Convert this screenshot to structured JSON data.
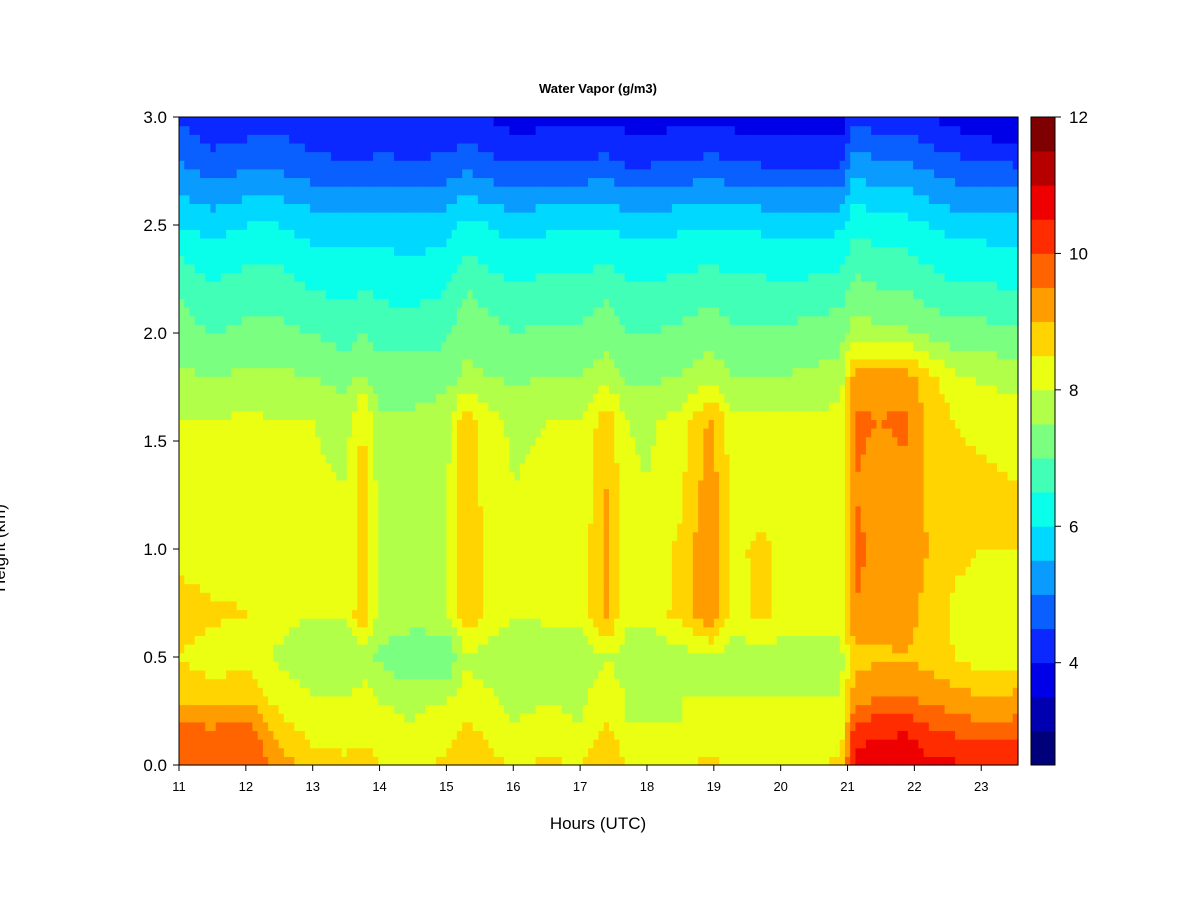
{
  "chart_data": {
    "type": "heatmap",
    "title": "Water Vapor (g/m3)",
    "xlabel": "Hours (UTC)",
    "ylabel": "Height (km)",
    "xlim": [
      11,
      23.55
    ],
    "ylim": [
      0,
      3
    ],
    "x_ticks": [
      "11",
      "12",
      "13",
      "14",
      "15",
      "16",
      "17",
      "18",
      "19",
      "20",
      "21",
      "22",
      "23"
    ],
    "y_ticks": [
      "0.0",
      "0.5",
      "1.0",
      "1.5",
      "2.0",
      "2.5",
      "3.0"
    ],
    "colorbar": {
      "min": 2.5,
      "max": 12,
      "ticks": [
        "4",
        "6",
        "8",
        "10",
        "12"
      ],
      "levels": [
        "#00007a",
        "#0000b0",
        "#0000e8",
        "#0a28ff",
        "#0a60ff",
        "#0a9bff",
        "#00d8ff",
        "#0affea",
        "#42ffb8",
        "#7aff80",
        "#b2ff4a",
        "#eaff12",
        "#ffd400",
        "#ff9c00",
        "#ff6400",
        "#ff2c00",
        "#ee0000",
        "#b60000",
        "#7e0000"
      ]
    },
    "height_km": [
      0.0,
      0.1,
      0.2,
      0.3,
      0.5,
      0.7,
      1.0,
      1.3,
      1.6,
      1.8,
      2.0,
      2.2,
      2.5,
      2.8,
      3.0
    ],
    "time_hours": [
      11.0,
      11.5,
      12.0,
      12.5,
      13.0,
      13.5,
      13.75,
      14.0,
      14.5,
      15.0,
      15.3,
      15.6,
      16.0,
      16.5,
      17.0,
      17.4,
      17.7,
      18.0,
      18.5,
      18.95,
      19.3,
      19.7,
      20.0,
      20.5,
      20.9,
      21.1,
      21.5,
      21.85,
      22.2,
      22.6,
      23.0,
      23.55
    ],
    "water_vapor_profiles": [
      [
        10.0,
        10.0,
        9.5,
        9.0,
        8.5,
        8.8,
        8.3,
        8.3,
        8.0,
        7.6,
        7.2,
        7.0,
        6.0,
        5.0,
        4.4
      ],
      [
        9.8,
        9.8,
        9.4,
        8.8,
        8.2,
        8.6,
        8.2,
        8.2,
        8.0,
        7.5,
        7.0,
        6.6,
        5.8,
        4.6,
        4.2
      ],
      [
        10.0,
        10.0,
        9.6,
        9.0,
        8.3,
        8.5,
        8.4,
        8.3,
        8.1,
        7.6,
        7.1,
        6.8,
        6.0,
        4.8,
        4.2
      ],
      [
        9.2,
        9.0,
        8.6,
        8.3,
        7.9,
        8.2,
        8.1,
        8.1,
        8.0,
        7.6,
        7.1,
        6.8,
        6.0,
        4.8,
        4.3
      ],
      [
        8.8,
        8.5,
        8.3,
        8.1,
        7.6,
        8.0,
        8.0,
        8.1,
        8.0,
        7.5,
        7.0,
        6.5,
        5.8,
        4.6,
        4.1
      ],
      [
        8.6,
        8.4,
        8.2,
        8.0,
        7.5,
        8.0,
        8.0,
        8.0,
        7.8,
        7.3,
        6.8,
        6.4,
        5.8,
        4.5,
        4.0
      ],
      [
        8.8,
        8.5,
        8.3,
        8.2,
        7.8,
        9.0,
        8.8,
        8.7,
        8.6,
        7.6,
        7.0,
        6.5,
        5.8,
        4.5,
        4.0
      ],
      [
        8.5,
        8.3,
        8.1,
        8.0,
        7.4,
        7.8,
        7.8,
        7.8,
        7.6,
        7.2,
        6.8,
        6.4,
        5.8,
        4.6,
        4.0
      ],
      [
        8.4,
        8.2,
        8.0,
        7.9,
        7.0,
        7.8,
        7.8,
        7.8,
        7.6,
        7.2,
        6.8,
        6.3,
        5.7,
        4.5,
        4.0
      ],
      [
        8.6,
        8.4,
        8.2,
        8.0,
        7.0,
        7.9,
        7.9,
        7.9,
        7.8,
        7.3,
        6.9,
        6.5,
        5.8,
        4.6,
        4.0
      ],
      [
        8.9,
        8.9,
        8.5,
        8.3,
        7.9,
        8.9,
        8.9,
        8.9,
        8.9,
        7.6,
        7.4,
        7.0,
        6.2,
        4.8,
        4.2
      ],
      [
        8.6,
        8.5,
        8.3,
        8.1,
        7.8,
        8.4,
        8.4,
        8.3,
        8.2,
        7.5,
        7.2,
        6.8,
        6.0,
        4.6,
        4.0
      ],
      [
        8.5,
        8.2,
        8.0,
        7.9,
        7.6,
        8.0,
        8.0,
        8.0,
        7.9,
        7.4,
        7.0,
        6.6,
        5.8,
        4.4,
        3.8
      ],
      [
        8.6,
        8.3,
        8.1,
        8.0,
        7.7,
        8.1,
        8.1,
        8.1,
        8.0,
        7.5,
        7.1,
        6.7,
        5.9,
        4.5,
        3.8
      ],
      [
        8.5,
        8.2,
        8.0,
        7.9,
        7.6,
        8.1,
        8.1,
        8.1,
        8.0,
        7.5,
        7.1,
        6.7,
        5.9,
        4.5,
        3.8
      ],
      [
        8.9,
        8.8,
        8.5,
        8.4,
        8.0,
        9.2,
        9.2,
        9.0,
        8.8,
        7.8,
        7.3,
        6.9,
        6.0,
        4.6,
        3.9
      ],
      [
        8.5,
        8.2,
        8.0,
        8.0,
        7.7,
        8.1,
        8.1,
        8.1,
        8.0,
        7.4,
        7.0,
        6.6,
        5.8,
        4.4,
        3.8
      ],
      [
        8.5,
        8.2,
        8.0,
        7.9,
        7.6,
        8.1,
        8.1,
        8.0,
        7.9,
        7.4,
        7.0,
        6.6,
        5.8,
        4.4,
        3.8
      ],
      [
        8.5,
        8.2,
        8.0,
        8.0,
        7.7,
        8.7,
        8.6,
        8.4,
        8.2,
        7.5,
        7.1,
        6.7,
        5.9,
        4.5,
        3.8
      ],
      [
        8.6,
        8.3,
        8.2,
        8.0,
        8.0,
        9.4,
        9.5,
        9.3,
        9.1,
        7.8,
        7.3,
        6.8,
        6.0,
        4.6,
        3.9
      ],
      [
        8.5,
        8.2,
        8.0,
        8.0,
        7.7,
        8.3,
        8.4,
        8.3,
        8.1,
        7.5,
        7.1,
        6.7,
        5.9,
        4.5,
        3.8
      ],
      [
        8.5,
        8.2,
        8.0,
        8.0,
        7.7,
        8.6,
        8.6,
        8.3,
        8.1,
        7.5,
        7.1,
        6.7,
        5.9,
        4.4,
        3.7
      ],
      [
        8.5,
        8.2,
        8.1,
        8.0,
        7.7,
        8.4,
        8.4,
        8.3,
        8.1,
        7.5,
        7.1,
        6.6,
        5.8,
        4.4,
        3.7
      ],
      [
        8.5,
        8.3,
        8.1,
        8.0,
        7.7,
        8.3,
        8.3,
        8.2,
        8.1,
        7.6,
        7.2,
        6.7,
        5.8,
        4.4,
        3.6
      ],
      [
        8.6,
        8.3,
        8.1,
        8.0,
        7.8,
        8.3,
        8.3,
        8.3,
        8.2,
        7.7,
        7.3,
        6.8,
        5.9,
        4.4,
        3.6
      ],
      [
        10.8,
        10.4,
        10.0,
        9.3,
        8.8,
        9.5,
        9.6,
        9.5,
        9.6,
        9.2,
        7.8,
        7.2,
        6.4,
        5.2,
        4.4
      ],
      [
        11.0,
        10.6,
        10.2,
        9.6,
        8.9,
        9.2,
        9.4,
        9.3,
        9.5,
        9.2,
        7.6,
        7.0,
        6.2,
        5.0,
        4.2
      ],
      [
        11.0,
        10.7,
        10.3,
        9.6,
        9.0,
        9.3,
        9.4,
        9.4,
        9.6,
        9.3,
        7.6,
        7.0,
        6.2,
        5.0,
        4.2
      ],
      [
        10.6,
        10.3,
        9.9,
        9.4,
        8.8,
        8.8,
        9.0,
        8.9,
        8.9,
        8.7,
        7.4,
        6.8,
        6.0,
        4.8,
        4.0
      ],
      [
        10.6,
        10.2,
        9.7,
        9.3,
        8.5,
        8.4,
        8.6,
        8.6,
        8.5,
        8.1,
        7.2,
        6.6,
        5.8,
        4.6,
        3.8
      ],
      [
        10.4,
        10.0,
        9.5,
        9.1,
        8.2,
        8.3,
        8.5,
        8.6,
        8.4,
        7.9,
        7.2,
        6.6,
        5.8,
        4.5,
        3.6
      ],
      [
        10.5,
        10.1,
        9.6,
        9.2,
        8.3,
        8.4,
        8.5,
        8.5,
        8.3,
        7.8,
        7.1,
        6.5,
        5.7,
        4.4,
        3.4
      ]
    ]
  }
}
